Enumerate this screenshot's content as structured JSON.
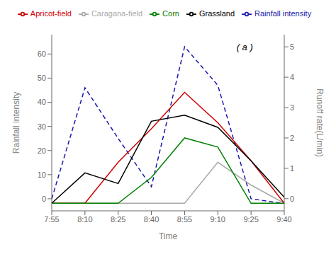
{
  "chart_data": {
    "type": "line",
    "xlabel": "Time",
    "ylabel": "Rainfall intensity",
    "y2label": "Runoff rate(L/min)",
    "annotation": "( a )",
    "categories": [
      "7:55",
      "8:10",
      "8:25",
      "8:40",
      "8:55",
      "9:10",
      "9:25",
      "9:40"
    ],
    "series": [
      {
        "name": "Rainfall intensity",
        "color": "#1a1aaa",
        "line_style": "dashed",
        "axis": "y",
        "values": [
          0,
          46,
          25,
          5,
          63,
          47,
          0,
          -2
        ]
      },
      {
        "name": "Caragana-field",
        "color": "#A9A9A9",
        "line_style": "solid",
        "axis": "y2",
        "values": [
          -0.15,
          -0.15,
          -0.15,
          -0.15,
          -0.15,
          1.2,
          0.45,
          -0.15
        ]
      },
      {
        "name": "Apricot-field",
        "color": "#CC0000",
        "line_style": "solid",
        "axis": "y2",
        "values": [
          -0.15,
          -0.15,
          1.2,
          2.3,
          3.5,
          2.5,
          1.25,
          -0.15
        ]
      },
      {
        "name": "Corn",
        "color": "#008000",
        "line_style": "solid",
        "axis": "y2",
        "values": [
          -0.15,
          -0.15,
          -0.15,
          0.7,
          2.0,
          1.7,
          -0.15,
          -0.15
        ]
      },
      {
        "name": "Grassland",
        "color": "#000000",
        "line_style": "solid",
        "axis": "y2",
        "values": [
          -0.15,
          0.85,
          0.5,
          2.55,
          2.75,
          2.35,
          1.25,
          0.05
        ]
      }
    ],
    "ylim": [
      -5,
      68
    ],
    "yticks": [
      0,
      10,
      20,
      30,
      40,
      50,
      60
    ],
    "y2lim": [
      -0.4,
      5.4
    ],
    "y2ticks": [
      0,
      1,
      2,
      3,
      4,
      5
    ],
    "grid": false,
    "legend": "top"
  }
}
